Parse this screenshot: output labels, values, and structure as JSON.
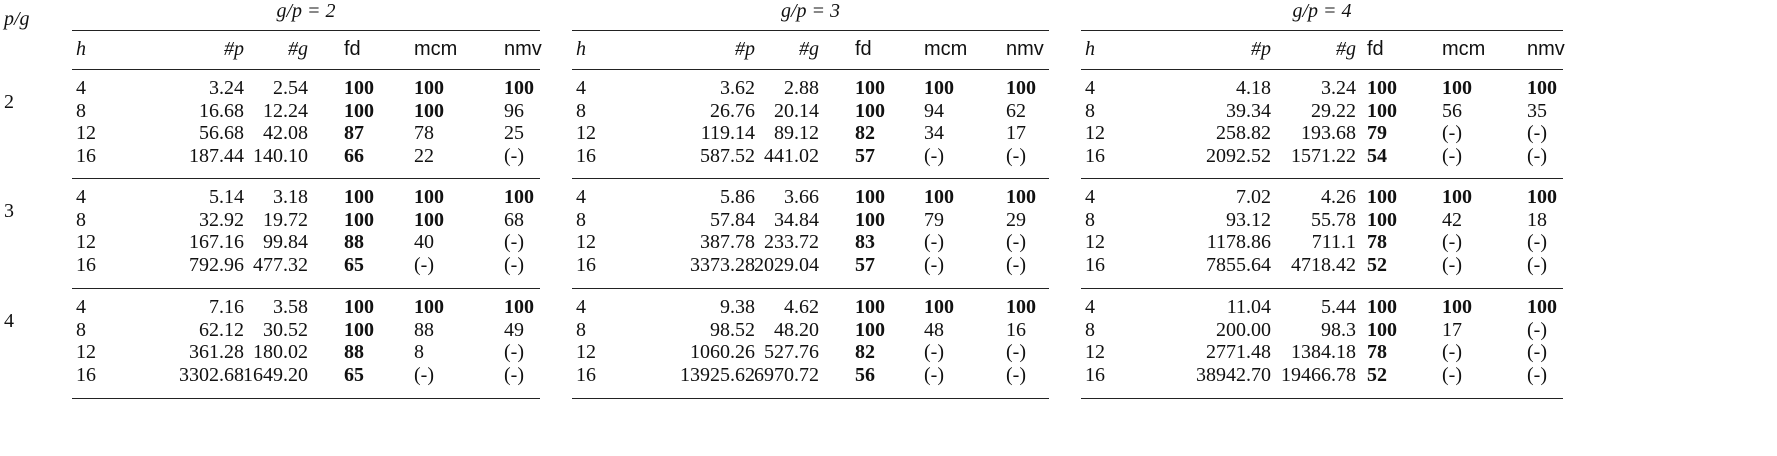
{
  "corner_label": "p/g",
  "columns": [
    "h",
    "#p",
    "#g",
    "fd",
    "mcm",
    "nmv"
  ],
  "groups": [
    {
      "title": "g/p = 2"
    },
    {
      "title": "g/p = 3"
    },
    {
      "title": "g/p = 4"
    }
  ],
  "row_groups": [
    {
      "label": "2",
      "tables": [
        [
          {
            "h": "4",
            "p": "3.24",
            "g": "2.54",
            "fd": "100",
            "fd_bold": true,
            "mcm": "100",
            "mcm_bold": true,
            "nmv": "100",
            "nmv_bold": true
          },
          {
            "h": "8",
            "p": "16.68",
            "g": "12.24",
            "fd": "100",
            "fd_bold": true,
            "mcm": "100",
            "mcm_bold": true,
            "nmv": "96",
            "nmv_bold": false
          },
          {
            "h": "12",
            "p": "56.68",
            "g": "42.08",
            "fd": "87",
            "fd_bold": true,
            "mcm": "78",
            "mcm_bold": false,
            "nmv": "25",
            "nmv_bold": false
          },
          {
            "h": "16",
            "p": "187.44",
            "g": "140.10",
            "fd": "66",
            "fd_bold": true,
            "mcm": "22",
            "mcm_bold": false,
            "nmv": "(-)",
            "nmv_bold": false
          }
        ],
        [
          {
            "h": "4",
            "p": "3.62",
            "g": "2.88",
            "fd": "100",
            "fd_bold": true,
            "mcm": "100",
            "mcm_bold": true,
            "nmv": "100",
            "nmv_bold": true
          },
          {
            "h": "8",
            "p": "26.76",
            "g": "20.14",
            "fd": "100",
            "fd_bold": true,
            "mcm": "94",
            "mcm_bold": false,
            "nmv": "62",
            "nmv_bold": false
          },
          {
            "h": "12",
            "p": "119.14",
            "g": "89.12",
            "fd": "82",
            "fd_bold": true,
            "mcm": "34",
            "mcm_bold": false,
            "nmv": "17",
            "nmv_bold": false
          },
          {
            "h": "16",
            "p": "587.52",
            "g": "441.02",
            "fd": "57",
            "fd_bold": true,
            "mcm": "(-)",
            "mcm_bold": false,
            "nmv": "(-)",
            "nmv_bold": false
          }
        ],
        [
          {
            "h": "4",
            "p": "4.18",
            "g": "3.24",
            "fd": "100",
            "fd_bold": true,
            "mcm": "100",
            "mcm_bold": true,
            "nmv": "100",
            "nmv_bold": true
          },
          {
            "h": "8",
            "p": "39.34",
            "g": "29.22",
            "fd": "100",
            "fd_bold": true,
            "mcm": "56",
            "mcm_bold": false,
            "nmv": "35",
            "nmv_bold": false
          },
          {
            "h": "12",
            "p": "258.82",
            "g": "193.68",
            "fd": "79",
            "fd_bold": true,
            "mcm": "(-)",
            "mcm_bold": false,
            "nmv": "(-)",
            "nmv_bold": false
          },
          {
            "h": "16",
            "p": "2092.52",
            "g": "1571.22",
            "fd": "54",
            "fd_bold": true,
            "mcm": "(-)",
            "mcm_bold": false,
            "nmv": "(-)",
            "nmv_bold": false
          }
        ]
      ]
    },
    {
      "label": "3",
      "tables": [
        [
          {
            "h": "4",
            "p": "5.14",
            "g": "3.18",
            "fd": "100",
            "fd_bold": true,
            "mcm": "100",
            "mcm_bold": true,
            "nmv": "100",
            "nmv_bold": true
          },
          {
            "h": "8",
            "p": "32.92",
            "g": "19.72",
            "fd": "100",
            "fd_bold": true,
            "mcm": "100",
            "mcm_bold": true,
            "nmv": "68",
            "nmv_bold": false
          },
          {
            "h": "12",
            "p": "167.16",
            "g": "99.84",
            "fd": "88",
            "fd_bold": true,
            "mcm": "40",
            "mcm_bold": false,
            "nmv": "(-)",
            "nmv_bold": false
          },
          {
            "h": "16",
            "p": "792.96",
            "g": "477.32",
            "fd": "65",
            "fd_bold": true,
            "mcm": "(-)",
            "mcm_bold": false,
            "nmv": "(-)",
            "nmv_bold": false
          }
        ],
        [
          {
            "h": "4",
            "p": "5.86",
            "g": "3.66",
            "fd": "100",
            "fd_bold": true,
            "mcm": "100",
            "mcm_bold": true,
            "nmv": "100",
            "nmv_bold": true
          },
          {
            "h": "8",
            "p": "57.84",
            "g": "34.84",
            "fd": "100",
            "fd_bold": true,
            "mcm": "79",
            "mcm_bold": false,
            "nmv": "29",
            "nmv_bold": false
          },
          {
            "h": "12",
            "p": "387.78",
            "g": "233.72",
            "fd": "83",
            "fd_bold": true,
            "mcm": "(-)",
            "mcm_bold": false,
            "nmv": "(-)",
            "nmv_bold": false
          },
          {
            "h": "16",
            "p": "3373.28",
            "g": "2029.04",
            "fd": "57",
            "fd_bold": true,
            "mcm": "(-)",
            "mcm_bold": false,
            "nmv": "(-)",
            "nmv_bold": false
          }
        ],
        [
          {
            "h": "4",
            "p": "7.02",
            "g": "4.26",
            "fd": "100",
            "fd_bold": true,
            "mcm": "100",
            "mcm_bold": true,
            "nmv": "100",
            "nmv_bold": true
          },
          {
            "h": "8",
            "p": "93.12",
            "g": "55.78",
            "fd": "100",
            "fd_bold": true,
            "mcm": "42",
            "mcm_bold": false,
            "nmv": "18",
            "nmv_bold": false
          },
          {
            "h": "12",
            "p": "1178.86",
            "g": "711.1",
            "fd": "78",
            "fd_bold": true,
            "mcm": "(-)",
            "mcm_bold": false,
            "nmv": "(-)",
            "nmv_bold": false
          },
          {
            "h": "16",
            "p": "7855.64",
            "g": "4718.42",
            "fd": "52",
            "fd_bold": true,
            "mcm": "(-)",
            "mcm_bold": false,
            "nmv": "(-)",
            "nmv_bold": false
          }
        ]
      ]
    },
    {
      "label": "4",
      "tables": [
        [
          {
            "h": "4",
            "p": "7.16",
            "g": "3.58",
            "fd": "100",
            "fd_bold": true,
            "mcm": "100",
            "mcm_bold": true,
            "nmv": "100",
            "nmv_bold": true
          },
          {
            "h": "8",
            "p": "62.12",
            "g": "30.52",
            "fd": "100",
            "fd_bold": true,
            "mcm": "88",
            "mcm_bold": false,
            "nmv": "49",
            "nmv_bold": false
          },
          {
            "h": "12",
            "p": "361.28",
            "g": "180.02",
            "fd": "88",
            "fd_bold": true,
            "mcm": "8",
            "mcm_bold": false,
            "nmv": "(-)",
            "nmv_bold": false
          },
          {
            "h": "16",
            "p": "3302.68",
            "g": "1649.20",
            "fd": "65",
            "fd_bold": true,
            "mcm": "(-)",
            "mcm_bold": false,
            "nmv": "(-)",
            "nmv_bold": false
          }
        ],
        [
          {
            "h": "4",
            "p": "9.38",
            "g": "4.62",
            "fd": "100",
            "fd_bold": true,
            "mcm": "100",
            "mcm_bold": true,
            "nmv": "100",
            "nmv_bold": true
          },
          {
            "h": "8",
            "p": "98.52",
            "g": "48.20",
            "fd": "100",
            "fd_bold": true,
            "mcm": "48",
            "mcm_bold": false,
            "nmv": "16",
            "nmv_bold": false
          },
          {
            "h": "12",
            "p": "1060.26",
            "g": "527.76",
            "fd": "82",
            "fd_bold": true,
            "mcm": "(-)",
            "mcm_bold": false,
            "nmv": "(-)",
            "nmv_bold": false
          },
          {
            "h": "16",
            "p": "13925.62",
            "g": "6970.72",
            "fd": "56",
            "fd_bold": true,
            "mcm": "(-)",
            "mcm_bold": false,
            "nmv": "(-)",
            "nmv_bold": false
          }
        ],
        [
          {
            "h": "4",
            "p": "11.04",
            "g": "5.44",
            "fd": "100",
            "fd_bold": true,
            "mcm": "100",
            "mcm_bold": true,
            "nmv": "100",
            "nmv_bold": true
          },
          {
            "h": "8",
            "p": "200.00",
            "g": "98.3",
            "fd": "100",
            "fd_bold": true,
            "mcm": "17",
            "mcm_bold": false,
            "nmv": "(-)",
            "nmv_bold": false
          },
          {
            "h": "12",
            "p": "2771.48",
            "g": "1384.18",
            "fd": "78",
            "fd_bold": true,
            "mcm": "(-)",
            "mcm_bold": false,
            "nmv": "(-)",
            "nmv_bold": false
          },
          {
            "h": "16",
            "p": "38942.70",
            "g": "19466.78",
            "fd": "52",
            "fd_bold": true,
            "mcm": "(-)",
            "mcm_bold": false,
            "nmv": "(-)",
            "nmv_bold": false
          }
        ]
      ]
    }
  ]
}
